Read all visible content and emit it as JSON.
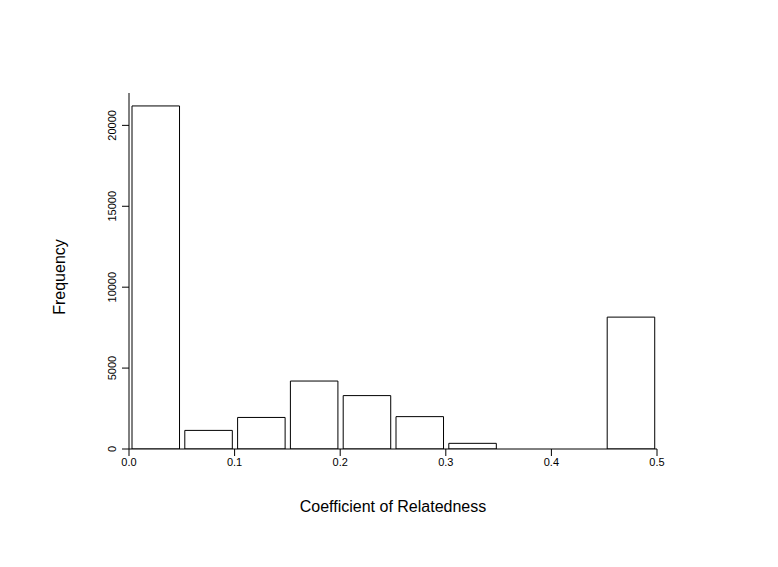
{
  "chart_data": {
    "type": "histogram",
    "x_label": "Coefficient of Relatedness",
    "y_label": "Frequency",
    "bins": [
      0,
      0.05,
      0.1,
      0.15,
      0.2,
      0.25,
      0.3,
      0.35,
      0.4,
      0.45,
      0.5
    ],
    "values": [
      21200,
      1150,
      1950,
      4200,
      3300,
      2000,
      350,
      0,
      0,
      8150
    ],
    "xlim": [
      0,
      0.5
    ],
    "xticks": [
      {
        "value": 0,
        "label": "0.0"
      },
      0.1,
      0.2,
      0.3,
      0.4,
      0.5
    ],
    "ylim": [
      0,
      22000
    ],
    "yticks": [
      0,
      5000,
      10000,
      15000,
      20000
    ],
    "color": "#ffffff",
    "grid": false
  }
}
